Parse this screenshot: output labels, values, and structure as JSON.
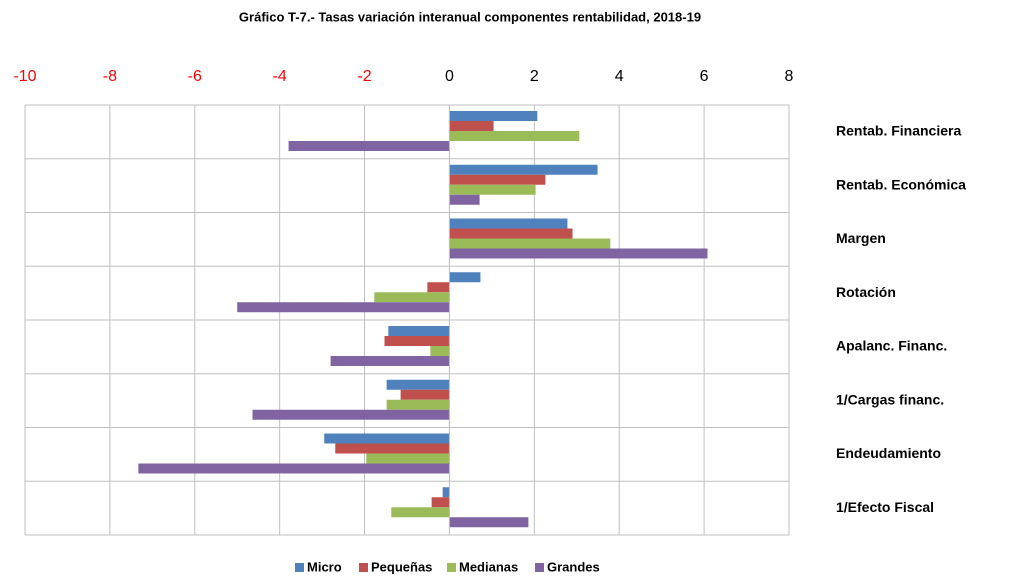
{
  "chart_data": {
    "type": "hbar",
    "title": "Gráfico T-7.- Tasas variación interanual componentes rentabilidad, 2018-19",
    "categories": [
      "Rentab. Financiera",
      "Rentab. Económica",
      "Margen",
      "Rotación",
      "Apalanc. Financ.",
      "1/Cargas financ.",
      "Endeudamiento",
      "1/Efecto Fiscal"
    ],
    "series": [
      {
        "name": "Micro",
        "color": "#4f81bd",
        "values": [
          2.07,
          3.49,
          2.78,
          0.73,
          -1.44,
          -1.48,
          -2.95,
          -0.16
        ]
      },
      {
        "name": "Pequeñas",
        "color": "#c0504d",
        "values": [
          1.04,
          2.26,
          2.9,
          -0.52,
          -1.53,
          -1.15,
          -2.69,
          -0.42
        ]
      },
      {
        "name": "Medianas",
        "color": "#9bbb59",
        "values": [
          3.06,
          2.03,
          3.79,
          -1.77,
          -0.45,
          -1.48,
          -1.96,
          -1.37
        ]
      },
      {
        "name": "Grandes",
        "color": "#8064a2",
        "values": [
          -3.79,
          0.71,
          6.08,
          -5.0,
          -2.8,
          -4.64,
          -7.33,
          1.86
        ]
      }
    ],
    "xlim": [
      -10,
      8
    ],
    "xticks": [
      -10,
      -8,
      -6,
      -4,
      -2,
      0,
      2,
      4,
      6,
      8
    ],
    "negative_tick_color": "#ff0000",
    "grid": true,
    "legend": "bottom"
  }
}
